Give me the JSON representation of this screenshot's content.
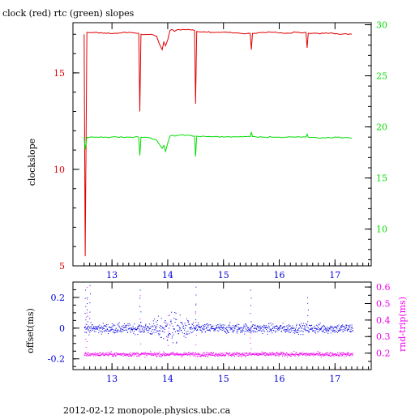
{
  "page": {
    "title": "clock (red) rtc (green) slopes",
    "footer": "2012-02-12  monopole.physics.ubc.ca"
  },
  "colors": {
    "clock": "#e00000",
    "rtc": "#00dd00",
    "offset": "#0000dd",
    "rndtrip": "#ee00ee",
    "axis": "#000000"
  },
  "chart_data": [
    {
      "type": "line",
      "title": "clock (red) rtc (green) slopes",
      "xlim": [
        12.3,
        17.65
      ],
      "x_ticks": [
        13,
        14,
        15,
        16,
        17
      ],
      "x_tick_labels": [
        "13",
        "14",
        "15",
        "16",
        "17"
      ],
      "y_left": {
        "label": "clockslope",
        "lim": [
          5,
          17.6
        ],
        "ticks": [
          5,
          10,
          15
        ],
        "tick_labels": [
          "5",
          "10",
          "15"
        ],
        "tick_color": "#e00000"
      },
      "y_right": {
        "label": "",
        "lim": [
          6.4,
          30.2
        ],
        "ticks": [
          10,
          15,
          20,
          25,
          30
        ],
        "tick_labels": [
          "10",
          "15",
          "20",
          "25",
          "30"
        ],
        "tick_color": "#00dd00"
      },
      "series": [
        {
          "axis": "left",
          "color": "#e00000",
          "x": [
            12.5,
            12.52,
            12.55,
            12.7,
            12.9,
            13.1,
            13.3,
            13.48,
            13.5,
            13.52,
            13.7,
            13.8,
            13.85,
            13.9,
            13.93,
            13.96,
            14.0,
            14.04,
            14.08,
            14.12,
            14.2,
            14.35,
            14.48,
            14.5,
            14.52,
            14.7,
            14.9,
            15.1,
            15.3,
            15.48,
            15.5,
            15.52,
            15.7,
            15.9,
            16.1,
            16.3,
            16.48,
            16.5,
            16.52,
            16.7,
            16.9,
            17.1,
            17.3
          ],
          "y": [
            17.0,
            5.5,
            17.1,
            17.1,
            17.05,
            17.05,
            17.1,
            17.05,
            13.0,
            17.0,
            17.0,
            16.9,
            16.5,
            16.2,
            16.6,
            16.4,
            16.7,
            17.2,
            17.25,
            17.15,
            17.25,
            17.25,
            17.2,
            13.4,
            17.15,
            17.1,
            17.1,
            17.1,
            17.05,
            17.05,
            16.2,
            17.05,
            17.1,
            17.1,
            17.05,
            17.1,
            17.1,
            16.3,
            17.05,
            17.05,
            17.05,
            17.0,
            17.0
          ]
        },
        {
          "axis": "right",
          "color": "#00dd00",
          "x": [
            12.5,
            12.52,
            12.55,
            12.7,
            12.9,
            13.1,
            13.3,
            13.48,
            13.5,
            13.52,
            13.7,
            13.8,
            13.85,
            13.9,
            13.93,
            13.96,
            14.0,
            14.04,
            14.08,
            14.12,
            14.2,
            14.35,
            14.48,
            14.5,
            14.52,
            14.7,
            14.9,
            15.1,
            15.3,
            15.48,
            15.5,
            15.52,
            15.7,
            15.9,
            16.1,
            16.3,
            16.48,
            16.5,
            16.52,
            16.7,
            16.9,
            17.1,
            17.3
          ],
          "y": [
            19.0,
            17.8,
            19.0,
            19.0,
            19.0,
            19.0,
            19.0,
            19.0,
            17.2,
            19.0,
            18.9,
            18.7,
            18.3,
            17.9,
            18.2,
            17.6,
            18.4,
            19.1,
            19.2,
            19.1,
            19.2,
            19.2,
            19.1,
            17.1,
            19.1,
            19.05,
            19.05,
            19.05,
            19.05,
            19.05,
            19.5,
            19.05,
            19.0,
            19.0,
            19.0,
            19.0,
            19.0,
            19.3,
            19.0,
            18.9,
            18.95,
            18.95,
            18.9
          ]
        }
      ]
    },
    {
      "type": "scatter",
      "xlim": [
        12.3,
        17.65
      ],
      "x_ticks": [
        13,
        14,
        15,
        16,
        17
      ],
      "x_tick_labels": [
        "13",
        "14",
        "15",
        "16",
        "17"
      ],
      "y_left": {
        "label": "offset(ms)",
        "lim": [
          -0.27,
          0.3
        ],
        "ticks": [
          -0.2,
          0,
          0.2
        ],
        "tick_labels": [
          "-0.2",
          "0",
          "0.2"
        ],
        "tick_color": "#0000dd"
      },
      "y_right": {
        "label": "rnd-trip(ms)",
        "lim": [
          0.1,
          0.63
        ],
        "ticks": [
          0.2,
          0.3,
          0.4,
          0.5,
          0.6
        ],
        "tick_labels": [
          "0.2",
          "0.3",
          "0.4",
          "0.5",
          "0.6"
        ],
        "tick_color": "#ee00ee"
      },
      "series": [
        {
          "axis": "left",
          "color": "#0000dd",
          "x_start": 12.5,
          "x_end": 17.32,
          "mean": 0.0,
          "spread": 0.03,
          "disturbed_region": [
            13.6,
            14.5
          ],
          "spikes": [
            {
              "x": 12.52,
              "y": 0.25
            },
            {
              "x": 12.55,
              "y": 0.2
            },
            {
              "x": 12.6,
              "y": 0.28
            },
            {
              "x": 13.5,
              "y": 0.25
            },
            {
              "x": 14.5,
              "y": 0.27
            },
            {
              "x": 15.48,
              "y": 0.25
            },
            {
              "x": 16.5,
              "y": 0.2
            }
          ]
        },
        {
          "axis": "right",
          "color": "#ee00ee",
          "x_start": 12.5,
          "x_end": 17.32,
          "mean": 0.195,
          "spread": 0.012,
          "spikes": [
            {
              "x": 12.55,
              "y": 0.6
            },
            {
              "x": 12.53,
              "y": 0.42
            },
            {
              "x": 13.5,
              "y": 0.55
            },
            {
              "x": 14.0,
              "y": 0.43
            },
            {
              "x": 14.5,
              "y": 0.5
            },
            {
              "x": 15.48,
              "y": 0.35
            }
          ]
        }
      ]
    }
  ]
}
